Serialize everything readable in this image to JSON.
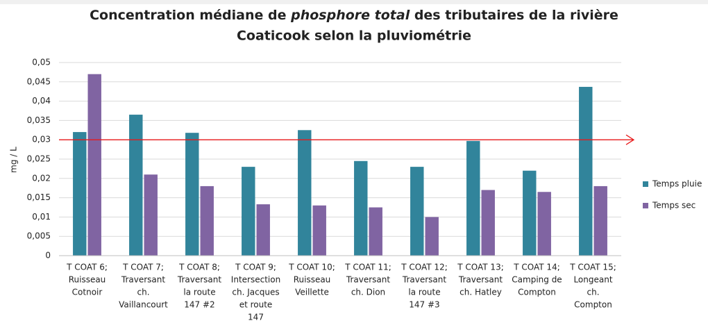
{
  "chart_data": {
    "type": "bar",
    "title": [
      "Concentration médiane de ",
      "phosphore total",
      " des tributaires de la rivière",
      "Coaticook selon la pluviométrie"
    ],
    "ylabel": "mg / L",
    "categories": [
      [
        "T COAT 6;",
        "Ruisseau",
        "Cotnoir"
      ],
      [
        "T COAT 7;",
        "Traversant",
        "ch.",
        "Vaillancourt"
      ],
      [
        "T COAT 8;",
        "Traversant",
        "la route",
        "147 #2"
      ],
      [
        "T COAT 9;",
        "Intersection",
        "ch. Jacques",
        "et route",
        "147"
      ],
      [
        "T COAT 10;",
        "Ruisseau",
        "Veillette"
      ],
      [
        "T COAT 11;",
        "Traversant",
        "ch. Dion"
      ],
      [
        "T COAT 12;",
        "Traversant",
        "la route",
        "147 #3"
      ],
      [
        "T COAT 13;",
        "Traversant",
        "ch. Hatley"
      ],
      [
        "T COAT 14;",
        "Camping de",
        "Compton"
      ],
      [
        "T COAT 15;",
        "Longeant",
        "ch.",
        "Compton"
      ]
    ],
    "series": [
      {
        "name": "Temps pluie",
        "color": "#31849b",
        "values": [
          0.032,
          0.0365,
          0.0318,
          0.023,
          0.0325,
          0.0245,
          0.023,
          0.0297,
          0.022,
          0.0437
        ]
      },
      {
        "name": "Temps sec",
        "color": "#8064a2",
        "values": [
          0.047,
          0.021,
          0.018,
          0.0133,
          0.013,
          0.0125,
          0.01,
          0.017,
          0.0165,
          0.018
        ]
      }
    ],
    "threshold": {
      "value": 0.03,
      "color": "#e8191a"
    },
    "ylim": [
      0,
      0.05
    ],
    "yticks": [
      0,
      {
        "value": 0.005,
        "label": "0,005"
      },
      {
        "value": 0.01,
        "label": "0,01"
      },
      {
        "value": 0.015,
        "label": "0,015"
      },
      {
        "value": 0.02,
        "label": "0,02"
      },
      {
        "value": 0.025,
        "label": "0,025"
      },
      {
        "value": 0.03,
        "label": "0,03"
      },
      {
        "value": 0.035,
        "label": "0,035"
      },
      {
        "value": 0.04,
        "label": "0,04"
      },
      {
        "value": 0.045,
        "label": "0,045"
      },
      {
        "value": 0.05,
        "label": "0,05"
      }
    ],
    "grid": true,
    "legend": "right"
  }
}
